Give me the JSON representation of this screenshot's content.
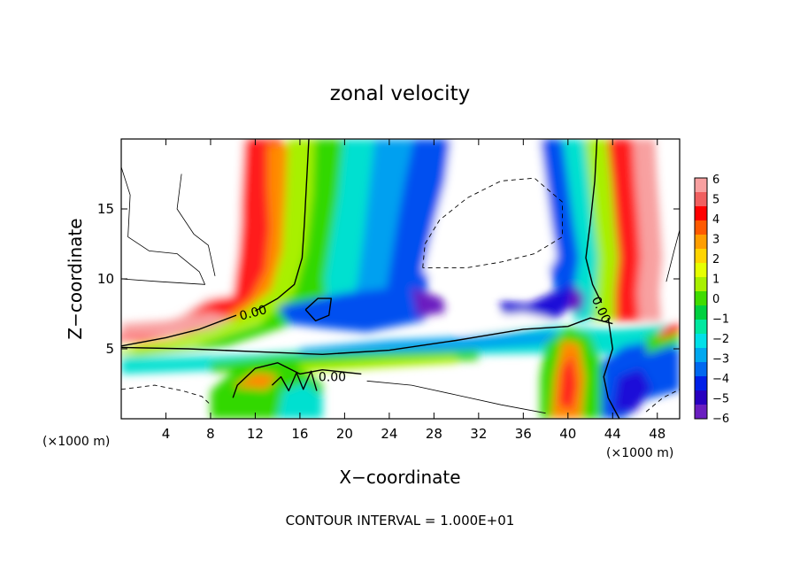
{
  "chart_data": {
    "type": "heatmap",
    "title": "zonal velocity",
    "xlabel": "X−coordinate",
    "ylabel": "Z−coordinate",
    "x_unit_left": "(×1000 m)",
    "x_unit_right": "(×1000 m)",
    "footer": "CONTOUR INTERVAL = 1.000E+01",
    "xlim": [
      0,
      50
    ],
    "ylim": [
      0,
      20
    ],
    "x_ticks": [
      "4",
      "8",
      "12",
      "16",
      "20",
      "24",
      "28",
      "32",
      "36",
      "40",
      "44",
      "48"
    ],
    "y_ticks": [
      "5",
      "10",
      "15"
    ],
    "colorbar": {
      "range": [
        -6,
        6
      ],
      "labels": [
        "6",
        "5",
        "4",
        "3",
        "2",
        "1",
        "0",
        "−1",
        "−2",
        "−3",
        "−4",
        "−5",
        "−6"
      ],
      "colors": [
        "#f8a0a0",
        "#f06060",
        "#ff0000",
        "#ff5a00",
        "#ff9e00",
        "#ffd400",
        "#e6ff00",
        "#a8f000",
        "#40dc00",
        "#00d040",
        "#00e8a0",
        "#00e0e8",
        "#00a8f0",
        "#0068f0",
        "#0020e8",
        "#2800c0",
        "#6a1ec0"
      ]
    },
    "contour_labels": [
      {
        "text": "0.00",
        "x": 11.8,
        "z": 7.6
      },
      {
        "text": "0.00",
        "x": 18.9,
        "z": 3.0
      },
      {
        "text": "0.00",
        "x": 43.0,
        "z": 7.8
      }
    ]
  }
}
